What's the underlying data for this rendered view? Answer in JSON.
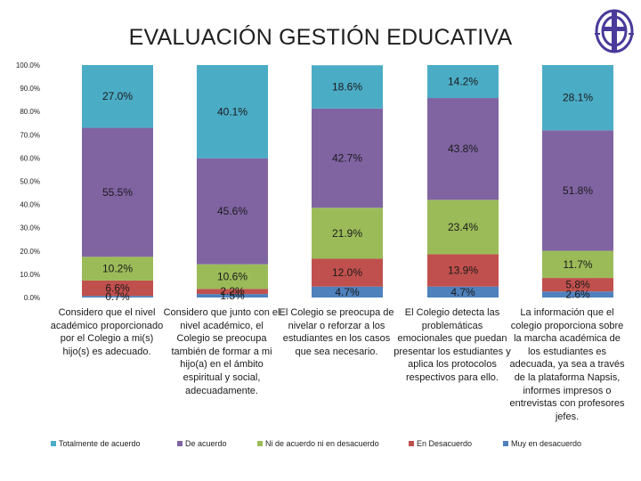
{
  "title": "EVALUACIÓN GESTIÓN EDUCATIVA",
  "logo": {
    "icon": "school-crest-icon",
    "color": "#4a3a9a"
  },
  "chart_data": {
    "type": "bar",
    "stacked": true,
    "title": "EVALUACIÓN GESTIÓN EDUCATIVA",
    "ylim": [
      0,
      100
    ],
    "yticks": [
      "0.0%",
      "10.0%",
      "20.0%",
      "30.0%",
      "40.0%",
      "50.0%",
      "60.0%",
      "70.0%",
      "80.0%",
      "90.0%",
      "100.0%"
    ],
    "grid": false,
    "legend_position": "bottom",
    "categories": [
      "Considero que el nivel académico proporcionado por el Colegio a mi(s) hijo(s) es adecuado.",
      "Considero que junto con el nivel académico, el Colegio se preocupa también de formar a mi hijo(a) en el ámbito espiritual y social, adecuadamente.",
      "El Colegio se preocupa de nivelar o reforzar a los estudiantes en los casos que sea necesario.",
      "El Colegio detecta las problemáticas emocionales que puedan presentar los estudiantes y aplica los protocolos respectivos para ello.",
      "La información que el colegio proporciona sobre la marcha académica de los estudiantes es adecuada, ya sea a través de la plataforma Napsis, informes impresos o entrevistas con profesores jefes."
    ],
    "series": [
      {
        "name": "Muy en desacuerdo",
        "color": "#4f81bd",
        "values": [
          0.7,
          1.5,
          4.7,
          4.7,
          2.6
        ],
        "labels": [
          "0.7%",
          "1.5%",
          "4.7%",
          "4.7%",
          "2.6%"
        ]
      },
      {
        "name": "En Desacuerdo",
        "color": "#c0504d",
        "values": [
          6.6,
          2.2,
          12.0,
          13.9,
          5.8
        ],
        "labels": [
          "6.6%",
          "2.2%",
          "12.0%",
          "13.9%",
          "5.8%"
        ]
      },
      {
        "name": "Ni de acuerdo ni en desacuerdo",
        "color": "#9bbb59",
        "values": [
          10.2,
          10.6,
          21.9,
          23.4,
          11.7
        ],
        "labels": [
          "10.2%",
          "10.6%",
          "21.9%",
          "23.4%",
          "11.7%"
        ]
      },
      {
        "name": "De acuerdo",
        "color": "#8064a2",
        "values": [
          55.5,
          45.6,
          42.7,
          43.8,
          51.8
        ],
        "labels": [
          "55.5%",
          "45.6%",
          "42.7%",
          "43.8%",
          "51.8%"
        ]
      },
      {
        "name": "Totalmente de acuerdo",
        "color": "#4bacc6",
        "values": [
          27.0,
          40.1,
          18.6,
          14.2,
          28.1
        ],
        "labels": [
          "27.0%",
          "40.1%",
          "18.6%",
          "14.2%",
          "28.1%"
        ]
      }
    ],
    "legend_order": [
      "Totalmente de acuerdo",
      "De acuerdo",
      "Ni de acuerdo ni en desacuerdo",
      "En Desacuerdo",
      "Muy en desacuerdo"
    ]
  }
}
